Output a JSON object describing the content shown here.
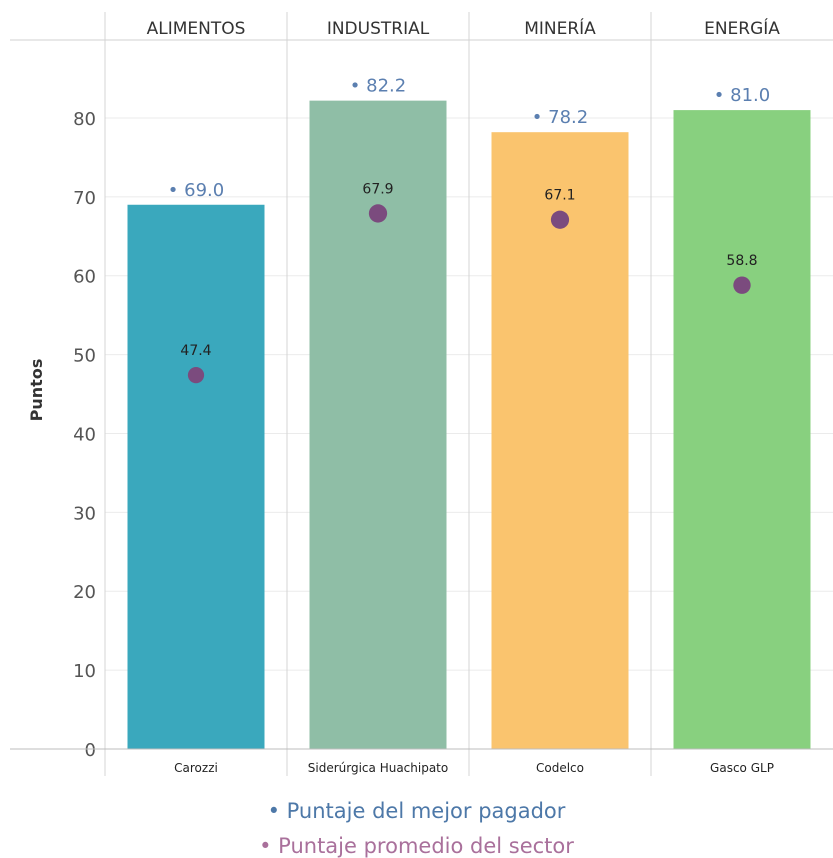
{
  "chart_data": {
    "type": "bar",
    "ylabel": "Puntos",
    "ylim": [
      0,
      89
    ],
    "yticks": [
      0,
      10,
      20,
      30,
      40,
      50,
      60,
      70,
      80
    ],
    "categories": [
      "ALIMENTOS",
      "INDUSTRIAL",
      "MINERÍA",
      "ENERGÍA"
    ],
    "companies": [
      "Carozzi",
      "Siderúrgica Huachipato",
      "Codelco",
      "Gasco GLP"
    ],
    "bar_colors": [
      "#3aa8bd",
      "#8fbea6",
      "#fac46e",
      "#88d07f"
    ],
    "point_color": "#7b4b7e",
    "best_label_color": "#5b7fb0",
    "series": [
      {
        "name": "Puntaje del mejor pagador",
        "values": [
          69.0,
          82.2,
          78.2,
          81.0
        ],
        "labels": [
          "69.0",
          "82.2",
          "78.2",
          "81.0"
        ]
      },
      {
        "name": "Puntaje promedio del sector",
        "values": [
          47.4,
          67.9,
          67.1,
          58.8
        ],
        "labels": [
          "47.4",
          "67.9",
          "67.1",
          "58.8"
        ]
      }
    ],
    "grid": true
  },
  "legend": {
    "best": "• Puntaje del mejor pagador",
    "avg": "• Puntaje promedio del sector",
    "best_color": "#4d78a8",
    "avg_color": "#a9709b"
  }
}
